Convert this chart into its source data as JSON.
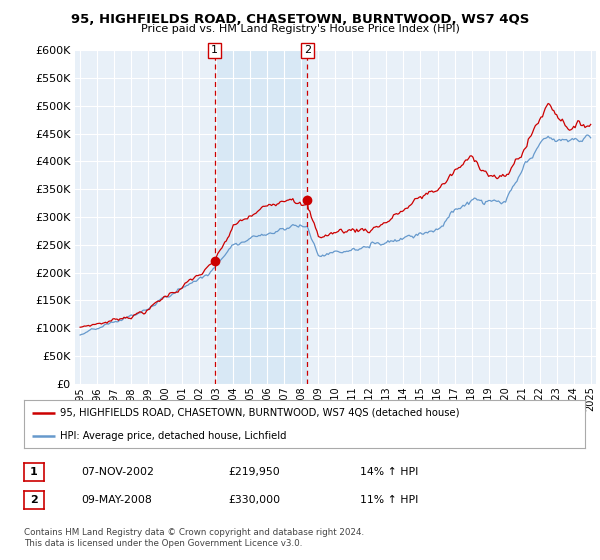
{
  "title": "95, HIGHFIELDS ROAD, CHASETOWN, BURNTWOOD, WS7 4QS",
  "subtitle": "Price paid vs. HM Land Registry's House Price Index (HPI)",
  "ylim": [
    0,
    600000
  ],
  "yticks": [
    0,
    50000,
    100000,
    150000,
    200000,
    250000,
    300000,
    350000,
    400000,
    450000,
    500000,
    550000,
    600000
  ],
  "sale1_year": 2002.9,
  "sale1_value": 219950,
  "sale1_label": "1",
  "sale2_year": 2008.36,
  "sale2_value": 330000,
  "sale2_label": "2",
  "legend_line1": "95, HIGHFIELDS ROAD, CHASETOWN, BURNTWOOD, WS7 4QS (detached house)",
  "legend_line2": "HPI: Average price, detached house, Lichfield",
  "table_row1_num": "1",
  "table_row1_date": "07-NOV-2002",
  "table_row1_price": "£219,950",
  "table_row1_hpi": "14% ↑ HPI",
  "table_row2_num": "2",
  "table_row2_date": "09-MAY-2008",
  "table_row2_price": "£330,000",
  "table_row2_hpi": "11% ↑ HPI",
  "footnote": "Contains HM Land Registry data © Crown copyright and database right 2024.\nThis data is licensed under the Open Government Licence v3.0.",
  "red_color": "#cc0000",
  "blue_color": "#6699cc",
  "shade_color": "#d8e8f5",
  "bg_plot": "#e8f0f8",
  "grid_color": "#ffffff",
  "vline_color": "#cc0000"
}
